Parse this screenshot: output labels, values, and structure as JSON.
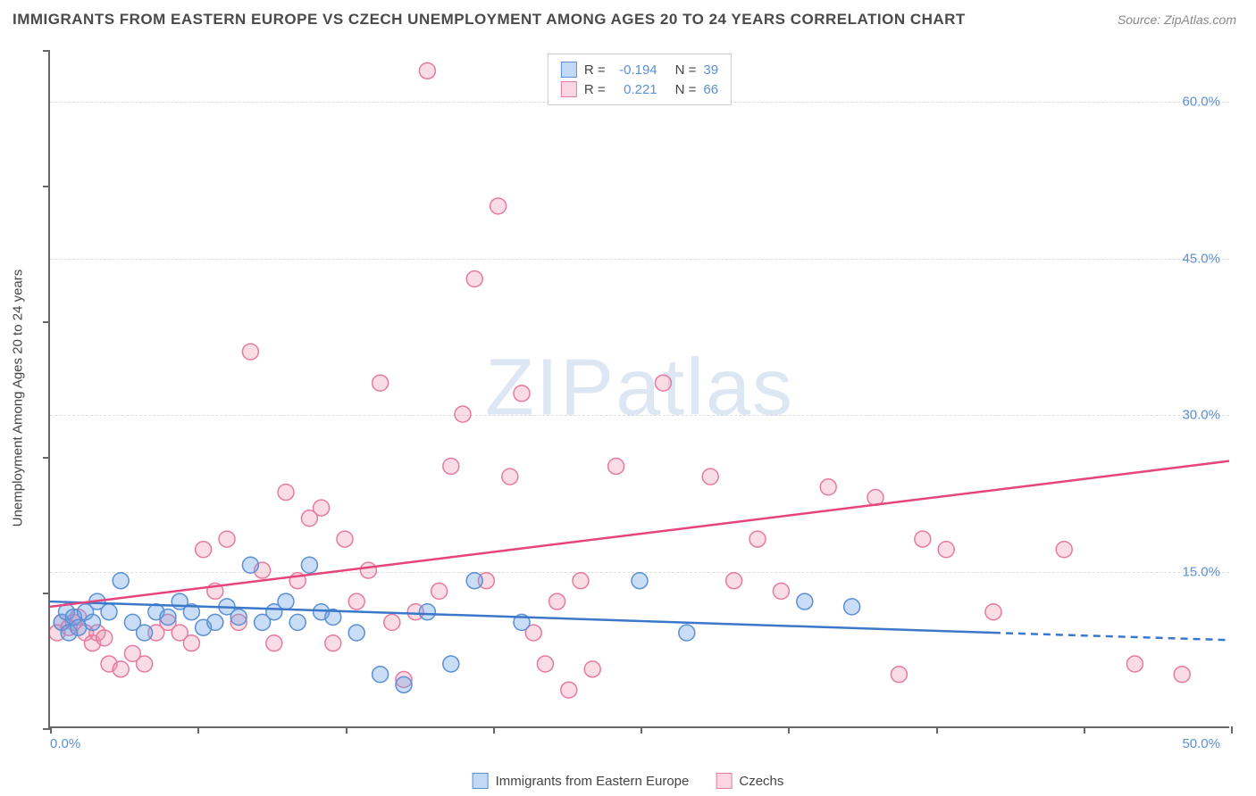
{
  "title": "IMMIGRANTS FROM EASTERN EUROPE VS CZECH UNEMPLOYMENT AMONG AGES 20 TO 24 YEARS CORRELATION CHART",
  "source": "Source: ZipAtlas.com",
  "watermark": "ZIPatlas",
  "y_axis_label": "Unemployment Among Ages 20 to 24 years",
  "chart": {
    "type": "scatter",
    "xlim": [
      0,
      50
    ],
    "ylim": [
      0,
      65
    ],
    "x_tick_label_min": "0.0%",
    "x_tick_label_max": "50.0%",
    "x_tick_positions_pct": [
      0,
      12.5,
      25,
      37.5,
      50,
      62.5,
      75,
      87.5,
      100
    ],
    "y_ticks": [
      {
        "value": 15,
        "label": "15.0%"
      },
      {
        "value": 30,
        "label": "30.0%"
      },
      {
        "value": 45,
        "label": "45.0%"
      },
      {
        "value": 60,
        "label": "60.0%"
      }
    ],
    "y_left_ticks": [
      0,
      20,
      40,
      60,
      80,
      100
    ],
    "grid_color": "#dddddd",
    "background_color": "#ffffff",
    "marker_radius": 9,
    "marker_stroke_width": 1.5,
    "line_stroke_width": 2.5,
    "series": [
      {
        "name": "Immigrants from Eastern Europe",
        "color_fill": "rgba(100,160,230,0.35)",
        "color_stroke": "#5b8fd6",
        "line_color": "#3b78c9",
        "R": "-0.194",
        "N": "39",
        "trend": {
          "x1": 0,
          "y1": 12.0,
          "x2": 40,
          "y2": 9.0,
          "dash_x2": 50,
          "dash_y2": 8.3
        },
        "points": [
          [
            0.5,
            10
          ],
          [
            0.7,
            11
          ],
          [
            0.8,
            9
          ],
          [
            1,
            10.5
          ],
          [
            1.2,
            9.5
          ],
          [
            1.5,
            11
          ],
          [
            1.8,
            10
          ],
          [
            2,
            12
          ],
          [
            2.5,
            11
          ],
          [
            3,
            14
          ],
          [
            3.5,
            10
          ],
          [
            4,
            9
          ],
          [
            4.5,
            11
          ],
          [
            5,
            10.5
          ],
          [
            5.5,
            12
          ],
          [
            6,
            11
          ],
          [
            6.5,
            9.5
          ],
          [
            7,
            10
          ],
          [
            7.5,
            11.5
          ],
          [
            8,
            10.5
          ],
          [
            8.5,
            15.5
          ],
          [
            9,
            10
          ],
          [
            9.5,
            11
          ],
          [
            10,
            12
          ],
          [
            10.5,
            10
          ],
          [
            11,
            15.5
          ],
          [
            11.5,
            11
          ],
          [
            12,
            10.5
          ],
          [
            13,
            9
          ],
          [
            14,
            5
          ],
          [
            15,
            4
          ],
          [
            16,
            11
          ],
          [
            17,
            6
          ],
          [
            18,
            14
          ],
          [
            20,
            10
          ],
          [
            25,
            14
          ],
          [
            27,
            9
          ],
          [
            32,
            12
          ],
          [
            34,
            11.5
          ]
        ]
      },
      {
        "name": "Czechs",
        "color_fill": "rgba(240,140,170,0.30)",
        "color_stroke": "#e67aa0",
        "line_color": "#e6447a",
        "R": "0.221",
        "N": "66",
        "trend": {
          "x1": 0,
          "y1": 11.5,
          "x2": 50,
          "y2": 25.5
        },
        "points": [
          [
            0.3,
            9
          ],
          [
            0.5,
            10
          ],
          [
            0.8,
            9.5
          ],
          [
            1,
            10
          ],
          [
            1.2,
            10.5
          ],
          [
            1.5,
            9
          ],
          [
            1.8,
            8
          ],
          [
            2,
            9
          ],
          [
            2.3,
            8.5
          ],
          [
            2.5,
            6
          ],
          [
            3,
            5.5
          ],
          [
            3.5,
            7
          ],
          [
            4,
            6
          ],
          [
            4.5,
            9
          ],
          [
            5,
            10
          ],
          [
            5.5,
            9
          ],
          [
            6,
            8
          ],
          [
            6.5,
            17
          ],
          [
            7,
            13
          ],
          [
            7.5,
            18
          ],
          [
            8,
            10
          ],
          [
            8.5,
            36
          ],
          [
            9,
            15
          ],
          [
            9.5,
            8
          ],
          [
            10,
            22.5
          ],
          [
            10.5,
            14
          ],
          [
            11,
            20
          ],
          [
            11.5,
            21
          ],
          [
            12,
            8
          ],
          [
            12.5,
            18
          ],
          [
            13,
            12
          ],
          [
            13.5,
            15
          ],
          [
            14,
            33
          ],
          [
            14.5,
            10
          ],
          [
            15,
            4.5
          ],
          [
            15.5,
            11
          ],
          [
            16,
            63
          ],
          [
            16.5,
            13
          ],
          [
            17,
            25
          ],
          [
            17.5,
            30
          ],
          [
            18,
            43
          ],
          [
            18.5,
            14
          ],
          [
            19,
            50
          ],
          [
            19.5,
            24
          ],
          [
            20,
            32
          ],
          [
            20.5,
            9
          ],
          [
            21,
            6
          ],
          [
            21.5,
            12
          ],
          [
            22,
            3.5
          ],
          [
            22.5,
            14
          ],
          [
            23,
            5.5
          ],
          [
            24,
            25
          ],
          [
            26,
            33
          ],
          [
            28,
            24
          ],
          [
            29,
            14
          ],
          [
            30,
            18
          ],
          [
            31,
            13
          ],
          [
            33,
            23
          ],
          [
            35,
            22
          ],
          [
            36,
            5
          ],
          [
            37,
            18
          ],
          [
            38,
            17
          ],
          [
            40,
            11
          ],
          [
            43,
            17
          ],
          [
            46,
            6
          ],
          [
            48,
            5
          ]
        ]
      }
    ]
  },
  "legend_top": {
    "rows": [
      {
        "swatch": "blue",
        "r_label": "R =",
        "r_val": "-0.194",
        "n_label": "N =",
        "n_val": "39"
      },
      {
        "swatch": "pink",
        "r_label": "R =",
        "r_val": "0.221",
        "n_label": "N =",
        "n_val": "66"
      }
    ]
  },
  "legend_bottom": {
    "items": [
      {
        "swatch": "blue",
        "label": "Immigrants from Eastern Europe"
      },
      {
        "swatch": "pink",
        "label": "Czechs"
      }
    ]
  }
}
